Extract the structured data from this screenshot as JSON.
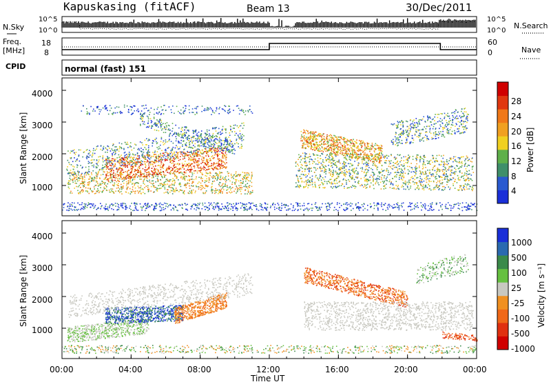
{
  "header": {
    "station": "Kapuskasing (fitACF)",
    "beam": "Beam 13",
    "date": "30/Dec/2011"
  },
  "noise_panel": {
    "left_label": "N.Sky",
    "right_label": "N.Search",
    "left_ticks": [
      "10^5",
      "10^0"
    ],
    "right_ticks": [
      "10^5",
      "10^0"
    ]
  },
  "freq_panel": {
    "left_label_line1": "Freq.",
    "left_label_line2": "[MHz]",
    "right_label": "Nave",
    "left_ticks": [
      "18",
      "8"
    ],
    "right_ticks": [
      "60",
      "0"
    ]
  },
  "cpid": {
    "label": "CPID",
    "value": "normal (fast) 151"
  },
  "colors": {
    "power_scale": [
      "#1a2fd8",
      "#2a5ad0",
      "#3f8f6a",
      "#5fb04a",
      "#f0d020",
      "#f0a020",
      "#f07818",
      "#e03810",
      "#d00000"
    ],
    "velocity_scale": [
      "#1a2fd8",
      "#2a6ab0",
      "#3a8a4a",
      "#66c040",
      "#c8c8c0",
      "#f09020",
      "#f06818",
      "#e03010",
      "#d00000"
    ]
  },
  "chart_data": [
    {
      "type": "heatmap",
      "title": "",
      "xlabel": "",
      "ylabel": "Slant Range [km]",
      "xlim": [
        "00:00",
        "24:00"
      ],
      "ylim": [
        200,
        4600
      ],
      "yticks": [
        "1000",
        "2000",
        "3000",
        "4000"
      ],
      "colorbar": {
        "label": "Power [dB]",
        "ticks": [
          "28",
          "24",
          "20",
          "16",
          "12",
          "8",
          "4"
        ],
        "range": [
          0,
          30
        ]
      }
    },
    {
      "type": "heatmap",
      "title": "",
      "xlabel": "Time UT",
      "ylabel": "Slant Range [km]",
      "xlim": [
        "00:00",
        "24:00"
      ],
      "ylim": [
        200,
        4600
      ],
      "xticks": [
        "00:00",
        "04:00",
        "08:00",
        "12:00",
        "16:00",
        "20:00",
        "00:00"
      ],
      "yticks": [
        "1000",
        "2000",
        "3000",
        "4000"
      ],
      "colorbar": {
        "label": "Velocity [m s⁻¹]",
        "ticks": [
          "1000",
          "500",
          "100",
          "25",
          "-25",
          "-100",
          "-500",
          "-1000"
        ]
      }
    }
  ]
}
